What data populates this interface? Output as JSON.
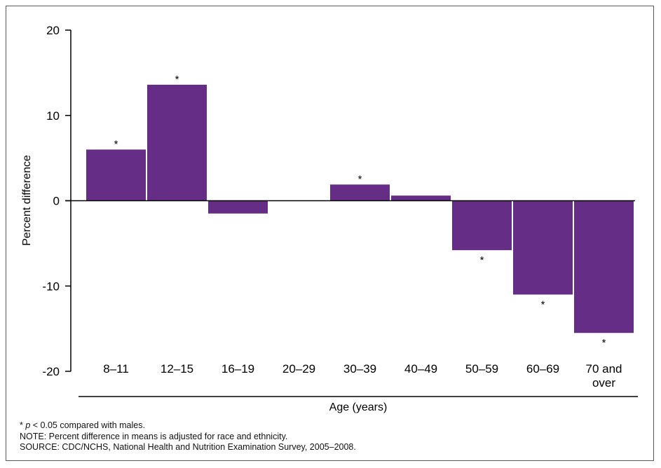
{
  "chart_data": {
    "type": "bar",
    "categories": [
      "8–11",
      "12–15",
      "16–19",
      "20–29",
      "30–39",
      "40–49",
      "50–59",
      "60–69",
      "70 and over"
    ],
    "category_lines": [
      [
        "8–11"
      ],
      [
        "12–15"
      ],
      [
        "16–19"
      ],
      [
        "20–29"
      ],
      [
        "30–39"
      ],
      [
        "40–49"
      ],
      [
        "50–59"
      ],
      [
        "60–69"
      ],
      [
        "70 and",
        "over"
      ]
    ],
    "values": [
      6.0,
      13.6,
      -1.5,
      0.0,
      1.9,
      0.6,
      -5.8,
      -11.0,
      -15.5
    ],
    "significant": [
      true,
      true,
      false,
      false,
      true,
      false,
      true,
      true,
      true
    ],
    "significance_marker": "*",
    "title": "",
    "xlabel": "Age (years)",
    "ylabel": "Percent difference",
    "ylim": [
      -20,
      20
    ],
    "yticks": [
      20,
      10,
      0,
      -10,
      -20
    ],
    "ytick_labels": [
      "20",
      "10",
      "0",
      "-10",
      "-20"
    ],
    "bar_color": "#652d86",
    "grid": false,
    "legend": "none"
  },
  "footnotes": {
    "significance_marker": "*",
    "p_symbol": "p",
    "significance_text": " < 0.05 compared with males.",
    "note": "NOTE: Percent difference in means is adjusted for race and ethnicity.",
    "source": "SOURCE: CDC/NCHS, National Health and Nutrition Examination Survey, 2005–2008."
  }
}
